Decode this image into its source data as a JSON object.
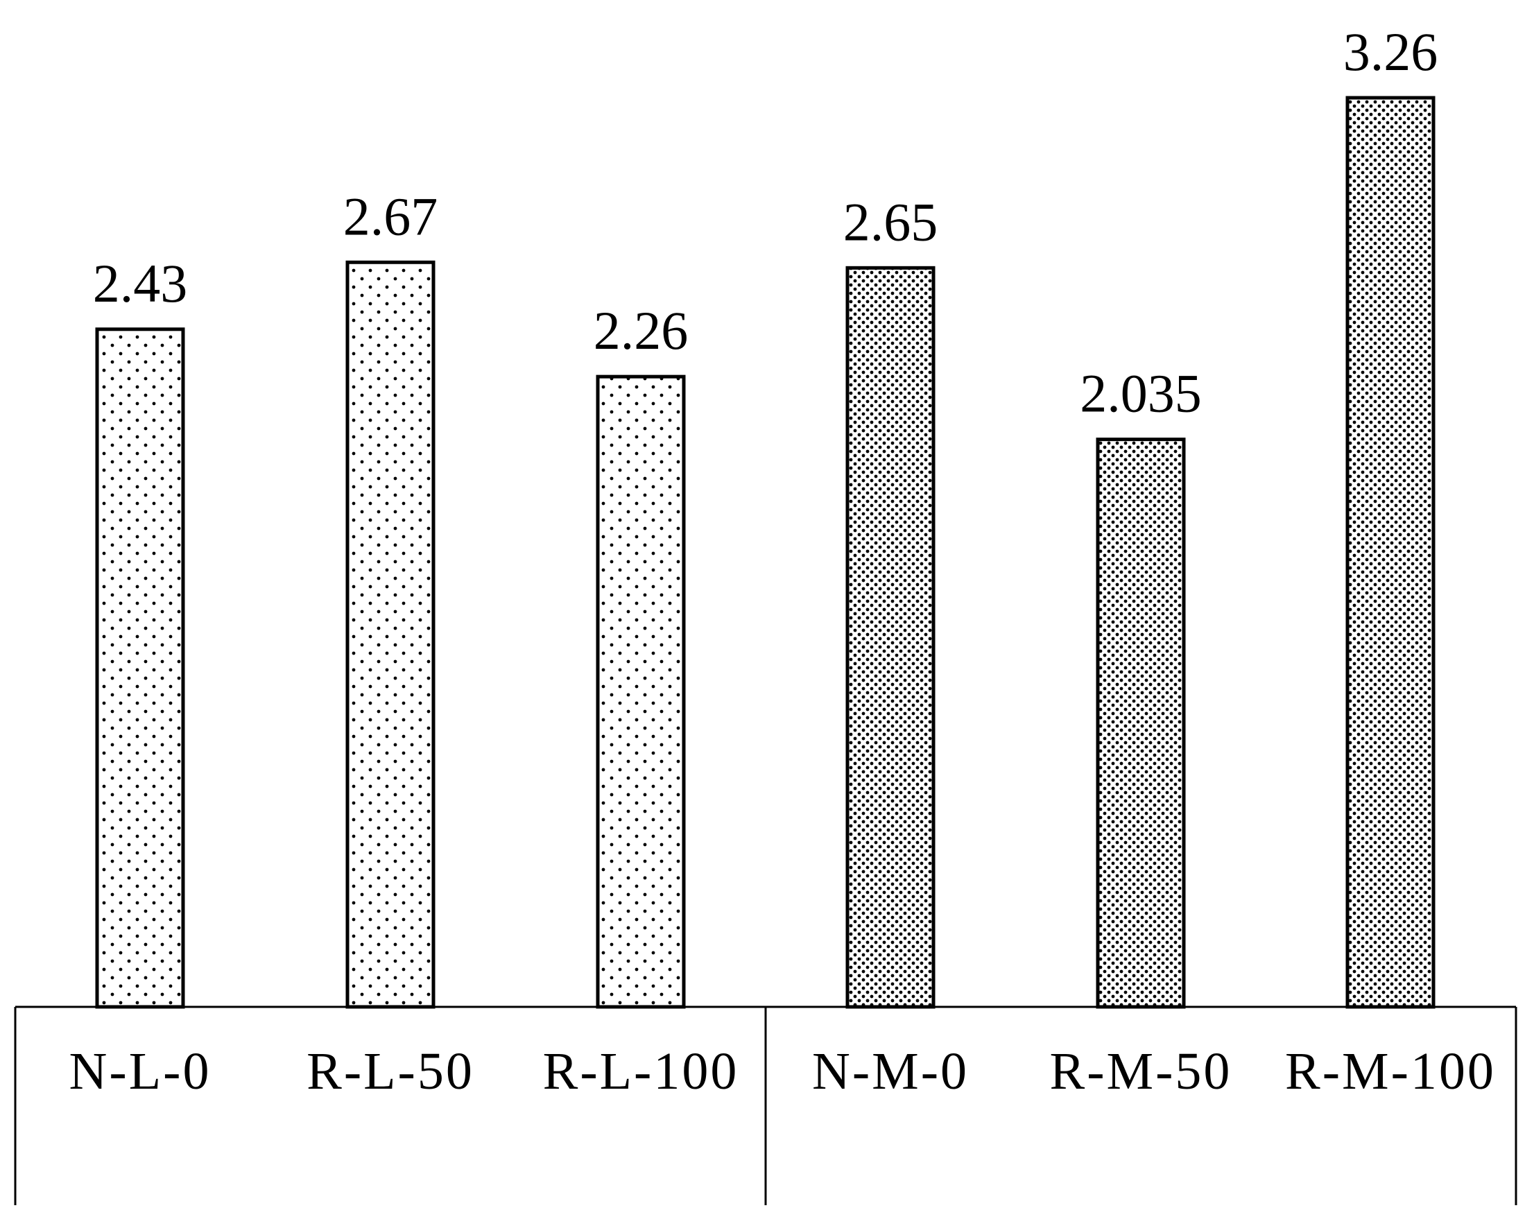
{
  "chart_data": {
    "type": "bar",
    "title": "",
    "xlabel": "",
    "ylabel": "",
    "categories": [
      "N-L-0",
      "R-L-50",
      "R-L-100",
      "N-M-0",
      "R-M-50",
      "R-M-100"
    ],
    "values": [
      2.43,
      2.67,
      2.26,
      2.65,
      2.035,
      3.26
    ],
    "value_labels": [
      "2.43",
      "2.67",
      "2.26",
      "2.65",
      "2.035",
      "3.26"
    ],
    "groups": [
      {
        "categories": [
          "N-L-0",
          "R-L-50",
          "R-L-100"
        ],
        "fill_pattern": "sparse-dots"
      },
      {
        "categories": [
          "N-M-0",
          "R-M-50",
          "R-M-100"
        ],
        "fill_pattern": "dense-dots"
      }
    ],
    "ylim": [
      0,
      3.26
    ],
    "grid": false,
    "legend": "none",
    "colors": {
      "stroke": "#000000",
      "background": "#ffffff",
      "dots": "#000000"
    }
  }
}
